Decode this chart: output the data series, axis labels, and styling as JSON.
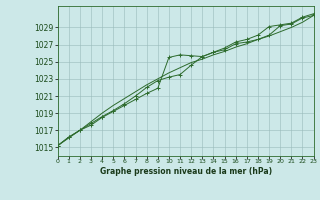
{
  "x": [
    0,
    1,
    2,
    3,
    4,
    5,
    6,
    7,
    8,
    9,
    10,
    11,
    12,
    13,
    14,
    15,
    16,
    17,
    18,
    19,
    20,
    21,
    22,
    23
  ],
  "line1": [
    1015.2,
    1016.2,
    1017.0,
    1017.6,
    1018.5,
    1019.2,
    1019.9,
    1020.6,
    1021.3,
    1021.9,
    1025.5,
    1025.8,
    1025.7,
    1025.6,
    1026.1,
    1026.4,
    1027.1,
    1027.3,
    1027.6,
    1028.1,
    1029.2,
    1029.4,
    1030.1,
    1030.4
  ],
  "line2": [
    1015.2,
    1016.2,
    1017.0,
    1017.8,
    1018.6,
    1019.3,
    1020.1,
    1021.0,
    1022.0,
    1022.8,
    1023.2,
    1023.5,
    1024.6,
    1025.6,
    1026.1,
    1026.6,
    1027.3,
    1027.6,
    1028.1,
    1029.1,
    1029.3,
    1029.5,
    1030.2,
    1030.6
  ],
  "line3": [
    1015.2,
    1016.1,
    1017.0,
    1018.0,
    1019.0,
    1019.9,
    1020.7,
    1021.5,
    1022.3,
    1023.0,
    1023.7,
    1024.3,
    1024.9,
    1025.3,
    1025.8,
    1026.2,
    1026.7,
    1027.1,
    1027.6,
    1028.0,
    1028.5,
    1029.0,
    1029.6,
    1030.4
  ],
  "line_color": "#2d6b2d",
  "bg_color": "#cce8e8",
  "grid_color": "#99bbbb",
  "ylabel_ticks": [
    1015,
    1017,
    1019,
    1021,
    1023,
    1025,
    1027,
    1029
  ],
  "xlabel": "Graphe pression niveau de la mer (hPa)",
  "xlim": [
    0,
    23
  ],
  "ylim": [
    1014.0,
    1031.5
  ]
}
